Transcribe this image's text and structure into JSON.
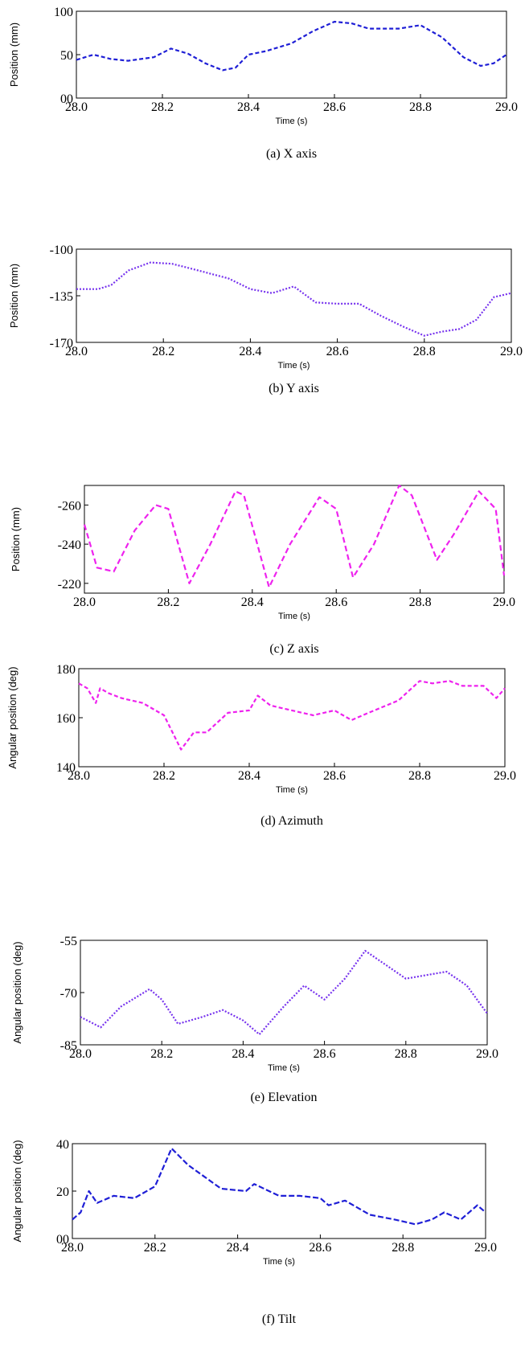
{
  "chart_data": [
    {
      "type": "line",
      "caption": "(a) X axis",
      "xlabel": "Time (s)",
      "ylabel": "Position (mm)",
      "xlim": [
        28.0,
        29.0
      ],
      "ylim": [
        0,
        100
      ],
      "xticks": [
        "28.0",
        "28.2",
        "28.4",
        "28.6",
        "28.8",
        "29.0"
      ],
      "yticks": [
        "00",
        "50",
        "100"
      ],
      "ytick_values": [
        0,
        50,
        100
      ],
      "series": [
        {
          "color": "#1f1fd6",
          "x": [
            28.0,
            28.04,
            28.08,
            28.12,
            28.18,
            28.22,
            28.26,
            28.3,
            28.34,
            28.37,
            28.4,
            28.44,
            28.5,
            28.55,
            28.6,
            28.64,
            28.68,
            28.75,
            28.8,
            28.85,
            28.9,
            28.94,
            28.97,
            29.0
          ],
          "y": [
            44,
            50,
            45,
            43,
            47,
            57,
            51,
            40,
            32,
            35,
            50,
            54,
            63,
            77,
            88,
            86,
            80,
            80,
            84,
            70,
            47,
            37,
            40,
            50
          ]
        }
      ]
    },
    {
      "type": "line",
      "caption": "(b) Y axis",
      "xlabel": "Time (s)",
      "ylabel": "Position (mm)",
      "xlim": [
        28.0,
        29.0
      ],
      "ylim": [
        -170,
        -100
      ],
      "xticks": [
        "28.0",
        "28.2",
        "28.4",
        "28.6",
        "28.8",
        "29.0"
      ],
      "yticks": [
        "-100",
        "-135",
        "-170"
      ],
      "ytick_values": [
        -100,
        -135,
        -170
      ],
      "series": [
        {
          "color": "#7733ee",
          "x": [
            28.0,
            28.05,
            28.08,
            28.12,
            28.17,
            28.22,
            28.28,
            28.35,
            28.4,
            28.45,
            28.5,
            28.55,
            28.6,
            28.65,
            28.7,
            28.75,
            28.8,
            28.84,
            28.88,
            28.92,
            28.96,
            29.0
          ],
          "y": [
            -130,
            -130,
            -127,
            -116,
            -110,
            -111,
            -116,
            -122,
            -130,
            -133,
            -128,
            -140,
            -141,
            -141,
            -150,
            -158,
            -165,
            -162,
            -160,
            -153,
            -136,
            -133
          ]
        }
      ]
    },
    {
      "type": "line",
      "caption": "(c) Z axis",
      "xlabel": "Time (s)",
      "ylabel": "Position (mm)",
      "xlim": [
        28.0,
        29.0
      ],
      "ylim": [
        -215,
        -270
      ],
      "xticks": [
        "28.0",
        "28.2",
        "28.4",
        "28.6",
        "28.8",
        "29.0"
      ],
      "yticks": [
        "-260",
        "-240",
        "-220"
      ],
      "ytick_values": [
        -260,
        -240,
        -220
      ],
      "series": [
        {
          "color": "#ee22ee",
          "x": [
            28.0,
            28.03,
            28.07,
            28.12,
            28.17,
            28.2,
            28.25,
            28.3,
            28.36,
            28.38,
            28.44,
            28.49,
            28.56,
            28.6,
            28.64,
            28.69,
            28.75,
            28.78,
            28.84,
            28.88,
            28.94,
            28.98,
            29.0
          ],
          "y": [
            -250,
            -228,
            -226,
            -247,
            -260,
            -258,
            -220,
            -240,
            -267,
            -265,
            -218,
            -240,
            -264,
            -258,
            -223,
            -240,
            -270,
            -265,
            -232,
            -245,
            -267,
            -258,
            -224
          ]
        }
      ]
    },
    {
      "type": "line",
      "caption": "(d) Azimuth",
      "xlabel": "Time (s)",
      "ylabel": "Angular position (deg)",
      "xlim": [
        28.0,
        29.0
      ],
      "ylim": [
        140,
        180
      ],
      "xticks": [
        "28.0",
        "28.2",
        "28.4",
        "28.6",
        "28.8",
        "29.0"
      ],
      "yticks": [
        "140",
        "160",
        "180"
      ],
      "ytick_values": [
        140,
        160,
        180
      ],
      "series": [
        {
          "color": "#ee22ee",
          "x": [
            28.0,
            28.02,
            28.04,
            28.05,
            28.07,
            28.1,
            28.15,
            28.2,
            28.24,
            28.27,
            28.3,
            28.35,
            28.4,
            28.42,
            28.45,
            28.5,
            28.55,
            28.6,
            28.64,
            28.68,
            28.75,
            28.8,
            28.83,
            28.87,
            28.9,
            28.95,
            28.98,
            29.0
          ],
          "y": [
            174,
            172,
            166,
            172,
            170,
            168,
            166,
            161,
            147,
            154,
            154,
            162,
            163,
            169,
            165,
            163,
            161,
            163,
            159,
            162,
            167,
            175,
            174,
            175,
            173,
            173,
            168,
            172
          ]
        }
      ]
    },
    {
      "type": "line",
      "caption": "(e) Elevation",
      "xlabel": "Time (s)",
      "ylabel": "Angular position (deg)",
      "xlim": [
        28.0,
        29.0
      ],
      "ylim": [
        -85,
        -55
      ],
      "xticks": [
        "28.0",
        "28.2",
        "28.4",
        "28.6",
        "28.8",
        "29.0"
      ],
      "yticks": [
        "-55",
        "-70",
        "-85"
      ],
      "ytick_values": [
        -55,
        -70,
        -85
      ],
      "series": [
        {
          "color": "#7733ee",
          "x": [
            28.0,
            28.05,
            28.1,
            28.17,
            28.2,
            28.24,
            28.3,
            28.35,
            28.4,
            28.44,
            28.5,
            28.55,
            28.6,
            28.65,
            28.7,
            28.75,
            28.8,
            28.85,
            28.9,
            28.95,
            29.0
          ],
          "y": [
            -77,
            -80,
            -74,
            -69,
            -72,
            -79,
            -77,
            -75,
            -78,
            -82,
            -74,
            -68,
            -72,
            -66,
            -58,
            -62,
            -66,
            -65,
            -64,
            -68,
            -76
          ]
        }
      ]
    },
    {
      "type": "line",
      "caption": "(f) Tilt",
      "xlabel": "Time (s)",
      "ylabel": "Angular position (deg)",
      "xlim": [
        28.0,
        29.0
      ],
      "ylim": [
        0,
        40
      ],
      "xticks": [
        "28.0",
        "28.2",
        "28.4",
        "28.6",
        "28.8",
        "29.0"
      ],
      "yticks": [
        "00",
        "20",
        "40"
      ],
      "ytick_values": [
        0,
        20,
        40
      ],
      "series": [
        {
          "color": "#1f1fd6",
          "x": [
            28.0,
            28.02,
            28.04,
            28.06,
            28.1,
            28.15,
            28.2,
            28.24,
            28.28,
            28.32,
            28.36,
            28.42,
            28.44,
            28.5,
            28.55,
            28.6,
            28.62,
            28.66,
            28.72,
            28.78,
            28.83,
            28.87,
            28.9,
            28.94,
            28.98,
            29.0
          ],
          "y": [
            8,
            11,
            20,
            15,
            18,
            17,
            22,
            38,
            31,
            26,
            21,
            20,
            23,
            18,
            18,
            17,
            14,
            16,
            10,
            8,
            6,
            8,
            11,
            8,
            14,
            11
          ]
        }
      ]
    }
  ]
}
